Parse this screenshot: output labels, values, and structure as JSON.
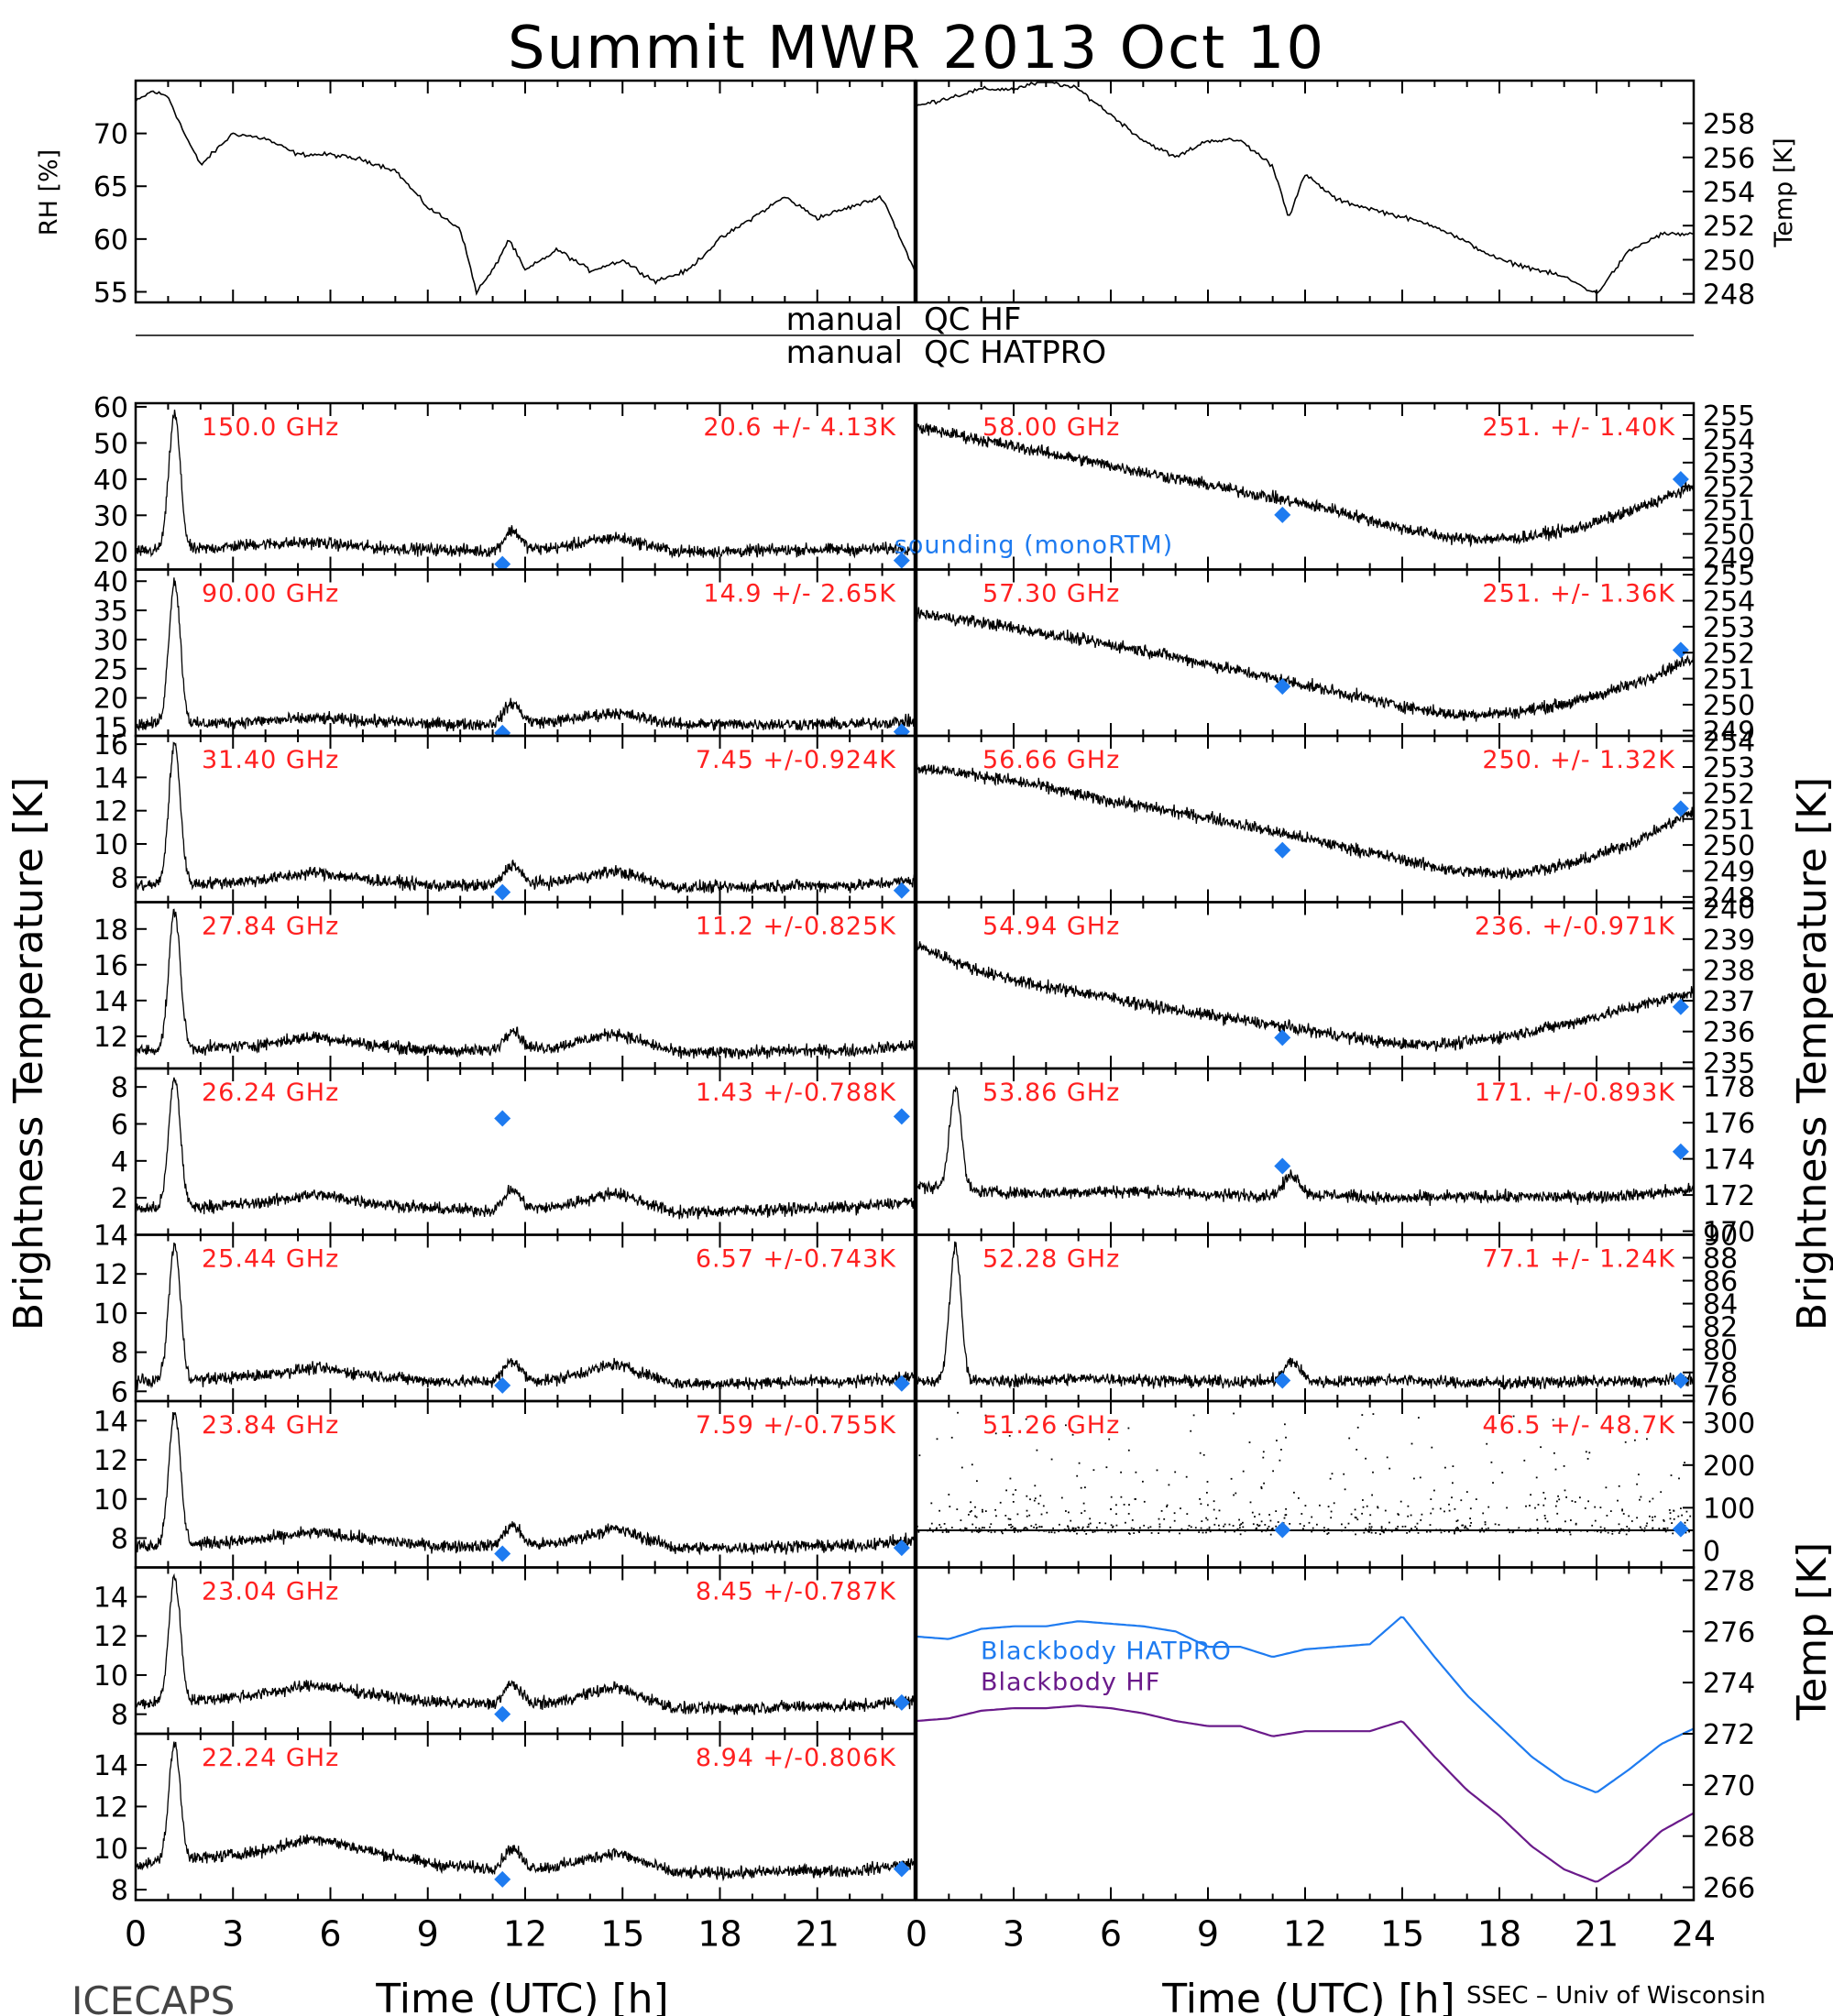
{
  "title": "Summit MWR 2013 Oct 10",
  "footer": {
    "left": "ICECAPS",
    "right": "SSEC – Univ of Wisconsin",
    "xlabel_left": "Time (UTC) [h]",
    "xlabel_right": "Time (UTC) [h]",
    "ylabel_left": "Brightness Temperature [K]",
    "ylabel_right": "Brightness Temperature [K]",
    "ylabel_bb": "Temp [K]"
  },
  "qc": {
    "left_1": "manual",
    "right_1": "QC HF",
    "left_2": "manual",
    "right_2": "QC HATPRO"
  },
  "colors": {
    "trace": "#000000",
    "sounding": "#1e7bf0",
    "stats": "#ff2020",
    "bb_hatpro": "#1e7bf0",
    "bb_hf": "#6a1a8a"
  },
  "chart_data": [
    {
      "type": "line",
      "panel": "rh",
      "ylabel": "RH [%]",
      "xlim": [
        0,
        24
      ],
      "ylim": [
        54,
        75
      ],
      "yticks": [
        55,
        60,
        65,
        70
      ],
      "x": [
        0,
        0.5,
        1,
        1.5,
        2,
        3,
        4,
        5,
        6,
        7,
        8,
        9,
        10,
        10.5,
        11,
        11.5,
        12,
        13,
        14,
        15,
        16,
        17,
        18,
        19,
        20,
        21,
        22,
        23,
        24
      ],
      "series": [
        {
          "values": [
            73,
            74,
            73.5,
            70,
            67,
            70,
            69.5,
            68,
            68,
            67.5,
            66.5,
            63,
            61,
            55,
            57,
            60,
            57,
            59,
            57,
            58,
            56,
            57,
            60,
            62,
            64,
            62,
            63,
            64,
            57
          ]
        }
      ]
    },
    {
      "type": "line",
      "panel": "temp",
      "ylabel": "Temp [K]",
      "xlim": [
        0,
        24
      ],
      "ylim": [
        247.5,
        260.5
      ],
      "yticks": [
        248,
        250,
        252,
        254,
        256,
        258
      ],
      "x": [
        0,
        1,
        2,
        3,
        4,
        5,
        6,
        7,
        8,
        9,
        10,
        11,
        11.5,
        12,
        13,
        14,
        15,
        16,
        17,
        18,
        19,
        20,
        21,
        22,
        23,
        24
      ],
      "series": [
        {
          "values": [
            259,
            259.5,
            260,
            260,
            260.5,
            260,
            258.5,
            257,
            256,
            257,
            257,
            255.5,
            252.5,
            255,
            253.5,
            253,
            252.5,
            252,
            251,
            250,
            249.5,
            249,
            248,
            250.5,
            251.5,
            251.5
          ]
        }
      ]
    },
    {
      "type": "line",
      "panel": "ch-left",
      "frequency": "150.0 GHz",
      "stats": "20.6 +/-  4.13K",
      "ylim": [
        15,
        61
      ],
      "yticks": [
        20,
        30,
        40,
        50,
        60
      ],
      "base": [
        20,
        20.5,
        22,
        22.5,
        21,
        20.5,
        20,
        21,
        24,
        20,
        20,
        20.5,
        20.5,
        21
      ],
      "sounding": [
        16.5,
        17.5
      ],
      "peak": 58,
      "note": "sounding (monoRTM)"
    },
    {
      "type": "line",
      "panel": "ch-left",
      "frequency": "90.00 GHz",
      "stats": "14.9 +/-  2.65K",
      "ylim": [
        13.5,
        42
      ],
      "yticks": [
        15,
        20,
        25,
        30,
        35,
        40
      ],
      "base": [
        15.5,
        15.5,
        16,
        16.5,
        16,
        15.5,
        15.5,
        16,
        17.5,
        15.5,
        15.5,
        15.5,
        15.5,
        16
      ],
      "sounding": [
        14,
        14.2
      ],
      "peak": 40
    },
    {
      "type": "line",
      "panel": "ch-left",
      "frequency": "31.40 GHz",
      "stats": "7.45 +/-0.924K",
      "ylim": [
        6.5,
        16.5
      ],
      "yticks": [
        8,
        10,
        12,
        14,
        16
      ],
      "base": [
        7.5,
        7.6,
        7.8,
        8.3,
        7.8,
        7.5,
        7.5,
        7.7,
        8.4,
        7.4,
        7.4,
        7.5,
        7.5,
        7.8
      ],
      "sounding": [
        7.1,
        7.2
      ],
      "peak": 16
    },
    {
      "type": "line",
      "panel": "ch-left",
      "frequency": "27.84 GHz",
      "stats": "11.2 +/-0.825K",
      "ylim": [
        10.2,
        19.5
      ],
      "yticks": [
        12,
        14,
        16,
        18
      ],
      "base": [
        11.2,
        11.3,
        11.5,
        12,
        11.5,
        11.2,
        11.2,
        11.4,
        12.2,
        11.1,
        11.1,
        11.2,
        11.2,
        11.5
      ],
      "sounding": null,
      "peak": 19
    },
    {
      "type": "line",
      "panel": "ch-left",
      "frequency": "26.24 GHz",
      "stats": "1.43 +/-0.788K",
      "ylim": [
        0,
        9
      ],
      "yticks": [
        2,
        4,
        6,
        8
      ],
      "base": [
        1.4,
        1.5,
        1.7,
        2.2,
        1.7,
        1.4,
        1.3,
        1.5,
        2.3,
        1.2,
        1.3,
        1.4,
        1.5,
        1.8
      ],
      "sounding": [
        6.3,
        6.4
      ],
      "peak": 8.5
    },
    {
      "type": "line",
      "panel": "ch-left",
      "frequency": "25.44 GHz",
      "stats": "6.57 +/-0.743K",
      "ylim": [
        5.5,
        14
      ],
      "yticks": [
        6,
        8,
        10,
        12,
        14
      ],
      "base": [
        6.5,
        6.6,
        6.8,
        7.2,
        6.8,
        6.5,
        6.5,
        6.6,
        7.4,
        6.4,
        6.4,
        6.5,
        6.5,
        6.8
      ],
      "sounding": [
        6.3,
        6.4
      ],
      "peak": 13.5
    },
    {
      "type": "line",
      "panel": "ch-left",
      "frequency": "23.84 GHz",
      "stats": "7.59 +/-0.755K",
      "ylim": [
        6.5,
        15
      ],
      "yticks": [
        8,
        10,
        12,
        14
      ],
      "base": [
        7.6,
        7.7,
        7.9,
        8.3,
        7.9,
        7.6,
        7.6,
        7.7,
        8.5,
        7.5,
        7.5,
        7.6,
        7.6,
        7.9
      ],
      "sounding": [
        7.2,
        7.5
      ],
      "peak": 14.5
    },
    {
      "type": "line",
      "panel": "ch-left",
      "frequency": "23.04 GHz",
      "stats": "8.45 +/-0.787K",
      "ylim": [
        7,
        15.5
      ],
      "yticks": [
        8,
        10,
        12,
        14
      ],
      "base": [
        8.5,
        8.7,
        9,
        9.5,
        9,
        8.6,
        8.5,
        8.6,
        9.4,
        8.3,
        8.3,
        8.4,
        8.4,
        8.7
      ],
      "sounding": [
        8,
        8.6
      ],
      "peak": 15
    },
    {
      "type": "line",
      "panel": "ch-left",
      "frequency": "22.24 GHz",
      "stats": "8.94 +/-0.806K",
      "ylim": [
        7.5,
        15.5
      ],
      "yticks": [
        8,
        10,
        12,
        14
      ],
      "base": [
        9.2,
        9.5,
        9.8,
        10.5,
        9.8,
        9.2,
        9,
        9.1,
        9.8,
        8.8,
        8.8,
        8.9,
        8.9,
        9.3
      ],
      "sounding": [
        8.5,
        9
      ],
      "peak": 15
    },
    {
      "type": "line",
      "panel": "ch-right",
      "frequency": "58.00 GHz",
      "stats": "251. +/- 1.40K",
      "ylim": [
        248.5,
        255.5
      ],
      "yticks": [
        249,
        250,
        251,
        252,
        253,
        254,
        255
      ],
      "base": [
        254.5,
        254,
        253.5,
        253,
        252.5,
        252,
        251.5,
        251,
        250.3,
        249.8,
        249.8,
        250.2,
        251,
        252
      ],
      "sounding": [
        250.8,
        252.3
      ],
      "peak": null
    },
    {
      "type": "line",
      "panel": "ch-right",
      "frequency": "57.30 GHz",
      "stats": "251. +/- 1.36K",
      "ylim": [
        248.8,
        255.2
      ],
      "yticks": [
        249,
        250,
        251,
        252,
        253,
        254,
        255
      ],
      "base": [
        253.5,
        253.2,
        252.8,
        252.4,
        252,
        251.5,
        251,
        250.5,
        250,
        249.6,
        249.7,
        250.1,
        250.8,
        251.8
      ],
      "sounding": [
        250.7,
        252.1
      ],
      "peak": null
    },
    {
      "type": "line",
      "panel": "ch-right",
      "frequency": "56.66 GHz",
      "stats": "250. +/- 1.32K",
      "ylim": [
        247.8,
        254.2
      ],
      "yticks": [
        248,
        249,
        250,
        251,
        252,
        253,
        254
      ],
      "base": [
        253,
        252.7,
        252.3,
        251.8,
        251.4,
        251,
        250.5,
        250,
        249.5,
        249,
        248.9,
        249.3,
        250.1,
        251.3
      ],
      "sounding": [
        249.8,
        251.4
      ],
      "peak": null
    },
    {
      "type": "line",
      "panel": "ch-right",
      "frequency": "54.94 GHz",
      "stats": "236. +/-0.971K",
      "ylim": [
        234.8,
        240.2
      ],
      "yticks": [
        235,
        236,
        237,
        238,
        239,
        240
      ],
      "base": [
        238.8,
        238,
        237.5,
        237.2,
        236.8,
        236.5,
        236.2,
        235.9,
        235.6,
        235.6,
        235.9,
        236.3,
        236.8,
        237.3
      ],
      "sounding": [
        235.8,
        236.8
      ],
      "peak": null
    },
    {
      "type": "line",
      "panel": "ch-right",
      "frequency": "53.86 GHz",
      "stats": "171. +/-0.893K",
      "ylim": [
        169.8,
        179
      ],
      "yticks": [
        170,
        172,
        174,
        176,
        178
      ],
      "base": [
        172.5,
        172.2,
        172.1,
        172.2,
        172.2,
        172,
        172,
        172,
        171.8,
        171.9,
        171.9,
        171.9,
        172,
        172.3
      ],
      "sounding": [
        173.6,
        174.4
      ],
      "peak": 178
    },
    {
      "type": "line",
      "panel": "ch-right",
      "frequency": "52.28 GHz",
      "stats": "77.1 +/- 1.24K",
      "ylim": [
        75.5,
        90
      ],
      "yticks": [
        76,
        78,
        80,
        82,
        84,
        86,
        88,
        90
      ],
      "base": [
        77.2,
        77.2,
        77.3,
        77.5,
        77.3,
        77.2,
        77.2,
        77.2,
        77.4,
        77.1,
        77.1,
        77.2,
        77.2,
        77.4
      ],
      "sounding": [
        77.3,
        77.3
      ],
      "peak": 89
    },
    {
      "type": "scatter",
      "panel": "ch-right",
      "frequency": "51.26 GHz",
      "stats": "46.5 +/- 48.7K",
      "ylim": [
        -40,
        350
      ],
      "yticks": [
        0,
        100,
        200,
        300
      ],
      "base": [
        47,
        47,
        47,
        47,
        47,
        47,
        47,
        47,
        47,
        47,
        47,
        47,
        47,
        47
      ],
      "sounding": [
        48,
        50
      ],
      "peak": null
    },
    {
      "type": "line",
      "panel": "blackbody",
      "ylabel": "Temp [K]",
      "xlim": [
        0,
        24
      ],
      "ylim": [
        265.5,
        278.5
      ],
      "yticks": [
        266,
        268,
        270,
        272,
        274,
        276,
        278
      ],
      "x": [
        0,
        1,
        2,
        3,
        4,
        5,
        6,
        7,
        8,
        9,
        10,
        11,
        12,
        13,
        14,
        15,
        16,
        17,
        18,
        19,
        20,
        21,
        22,
        23,
        24
      ],
      "series": [
        {
          "name": "Blackbody HATPRO",
          "values": [
            275.8,
            275.7,
            276.1,
            276.2,
            276.2,
            276.4,
            276.3,
            276.2,
            276.0,
            275.4,
            275.4,
            275,
            275.3,
            275.4,
            275.5,
            276.6,
            275.0,
            273.5,
            272.3,
            271.1,
            270.2,
            269.7,
            270.6,
            271.6,
            272.2
          ]
        },
        {
          "name": "Blackbody HF",
          "values": [
            272.5,
            272.6,
            272.9,
            273.0,
            273.0,
            273.1,
            273.0,
            272.8,
            272.5,
            272.3,
            272.3,
            271.9,
            272.1,
            272.1,
            272.1,
            272.5,
            271.1,
            269.8,
            268.8,
            267.6,
            266.7,
            266.2,
            267.0,
            268.2,
            268.9
          ]
        }
      ]
    }
  ],
  "x_ticks": [
    "0",
    "3",
    "6",
    "9",
    "12",
    "15",
    "18",
    "21"
  ],
  "x_ticks_right": [
    "0",
    "3",
    "6",
    "9",
    "12",
    "15",
    "18",
    "21",
    "24"
  ]
}
